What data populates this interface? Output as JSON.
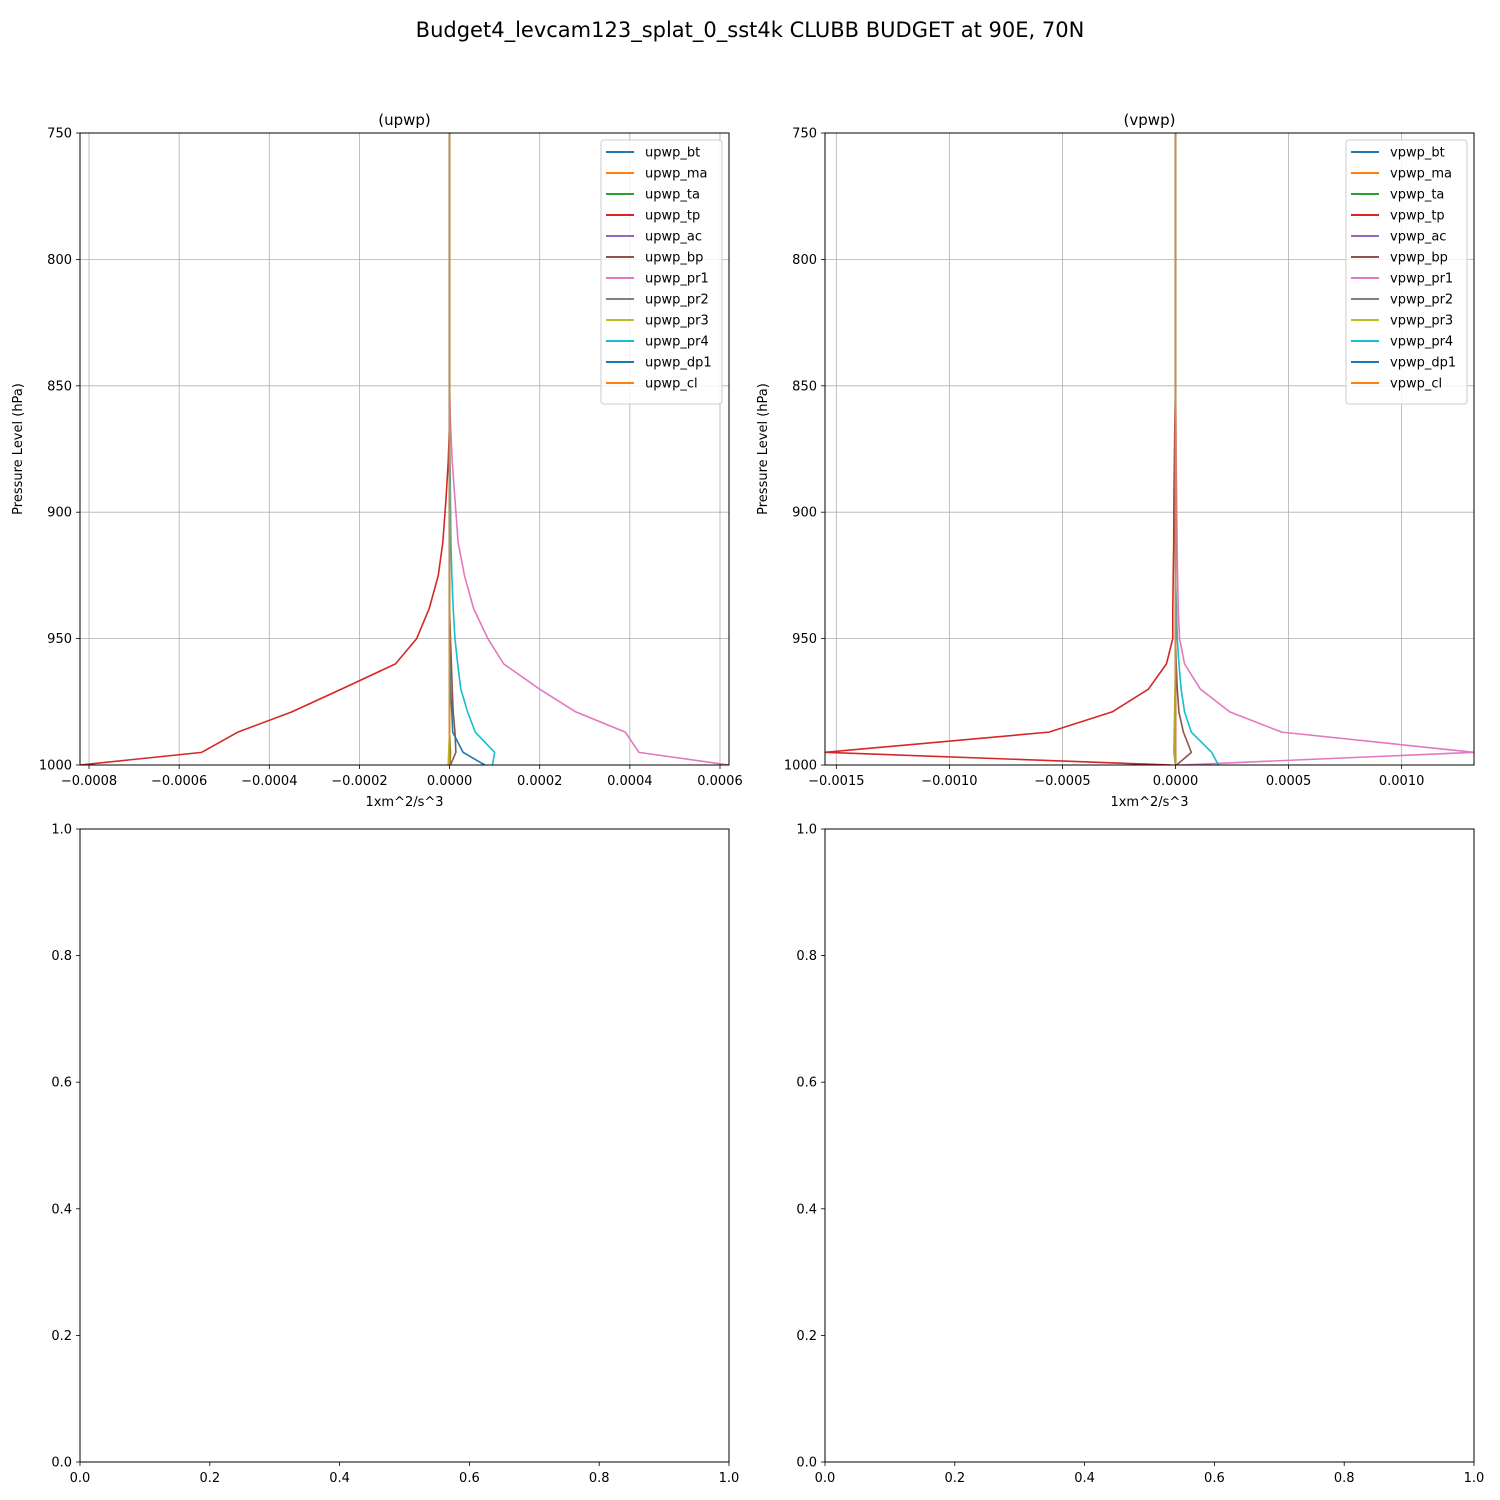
{
  "figure": {
    "suptitle": "Budget4_levcam123_splat_0_sst4k CLUBB BUDGET at 90E, 70N"
  },
  "chart_data": [
    {
      "type": "line",
      "title": "(upwp)",
      "xlabel": "1xm^2/s^3",
      "ylabel": "Pressure Level (hPa)",
      "xlim": [
        -0.00082,
        0.00062
      ],
      "ylim": [
        1000,
        750
      ],
      "y_inverted": true,
      "xticks": [
        -0.0008,
        -0.0006,
        -0.0004,
        -0.0002,
        0.0,
        0.0002,
        0.0004,
        0.0006
      ],
      "xtick_labels": [
        "−0.0008",
        "−0.0006",
        "−0.0004",
        "−0.0002",
        "0.0000",
        "0.0002",
        "0.0004",
        "0.0006"
      ],
      "yticks": [
        750,
        800,
        850,
        900,
        950,
        1000
      ],
      "ytick_labels": [
        "750",
        "800",
        "850",
        "900",
        "950",
        "1000"
      ],
      "grid": true,
      "legend_position": "upper-right",
      "levels": [
        750,
        800,
        850,
        865,
        880,
        895,
        912,
        925,
        938,
        950,
        960,
        970,
        979,
        987,
        995,
        1000
      ],
      "series": [
        {
          "name": "upwp_bt",
          "color": "#1f77b4",
          "values": [
            0,
            0,
            0,
            0,
            0,
            0,
            0,
            0,
            0,
            0,
            0,
            0,
            0,
            0,
            0,
            0
          ]
        },
        {
          "name": "upwp_ma",
          "color": "#ff7f0e",
          "values": [
            0,
            0,
            0,
            0,
            0,
            0,
            0,
            0,
            0,
            0,
            0,
            0,
            0,
            0,
            0,
            0
          ]
        },
        {
          "name": "upwp_ta",
          "color": "#2ca02c",
          "values": [
            0,
            0,
            0,
            0,
            0,
            0,
            0,
            0,
            0,
            0,
            0,
            0,
            0,
            0,
            2e-06,
            1e-06
          ]
        },
        {
          "name": "upwp_tp",
          "color": "#d62728",
          "values": [
            0,
            0,
            0,
            0,
            -3e-06,
            -8e-06,
            -1.5e-05,
            -2.5e-05,
            -4.5e-05,
            -7.3e-05,
            -0.00012,
            -0.00024,
            -0.00035,
            -0.00047,
            -0.00055,
            -0.00082
          ]
        },
        {
          "name": "upwp_ac",
          "color": "#9467bd",
          "values": [
            0,
            0,
            0,
            0,
            0,
            0,
            0,
            0,
            0,
            0,
            0,
            0,
            0,
            0,
            0,
            0
          ]
        },
        {
          "name": "upwp_bp",
          "color": "#8c564b",
          "values": [
            0,
            0,
            0,
            0,
            0,
            0,
            0,
            0,
            0,
            2e-06,
            4e-06,
            6e-06,
            8e-06,
            1.2e-05,
            1.4e-05,
            2e-06
          ]
        },
        {
          "name": "upwp_pr1",
          "color": "#e377c2",
          "values": [
            0,
            0,
            0,
            2e-06,
            6e-06,
            1.2e-05,
            1.9e-05,
            3.3e-05,
            5.3e-05,
            8.5e-05,
            0.00012,
            0.0002,
            0.00028,
            0.00039,
            0.00042,
            0.00062
          ]
        },
        {
          "name": "upwp_pr2",
          "color": "#7f7f7f",
          "values": [
            0,
            0,
            0,
            0,
            0,
            0,
            0,
            0,
            0,
            0,
            0,
            0,
            0,
            0,
            0,
            0
          ]
        },
        {
          "name": "upwp_pr3",
          "color": "#bcbd22",
          "values": [
            0,
            0,
            0,
            0,
            0,
            0,
            0,
            0,
            0,
            0,
            0,
            0,
            0,
            0,
            -2e-06,
            -3e-06
          ]
        },
        {
          "name": "upwp_pr4",
          "color": "#17becf",
          "values": [
            0,
            0,
            0,
            0,
            1e-06,
            2e-06,
            3e-06,
            5e-06,
            8e-06,
            1.2e-05,
            1.8e-05,
            2.5e-05,
            4e-05,
            5.7e-05,
            0.0001,
            9.5e-05
          ]
        },
        {
          "name": "upwp_dp1",
          "color": "#1f77b4",
          "values": [
            0,
            0,
            0,
            0,
            0,
            0,
            0,
            0,
            0,
            0,
            1e-06,
            2e-06,
            5e-06,
            7e-06,
            3e-05,
            7.8e-05
          ]
        },
        {
          "name": "upwp_cl",
          "color": "#ff7f0e",
          "values": [
            0,
            0,
            0,
            0,
            0,
            0,
            0,
            0,
            0,
            0,
            0,
            0,
            0,
            0,
            0,
            0
          ]
        }
      ]
    },
    {
      "type": "line",
      "title": "(vpwp)",
      "xlabel": "1xm^2/s^3",
      "ylabel": "Pressure Level (hPa)",
      "xlim": [
        -0.00155,
        0.00132
      ],
      "ylim": [
        1000,
        750
      ],
      "y_inverted": true,
      "xticks": [
        -0.0015,
        -0.001,
        -0.0005,
        0.0,
        0.0005,
        0.001
      ],
      "xtick_labels": [
        "−0.0015",
        "−0.0010",
        "−0.0005",
        "0.0000",
        "0.0005",
        "0.0010"
      ],
      "yticks": [
        750,
        800,
        850,
        900,
        950,
        1000
      ],
      "ytick_labels": [
        "750",
        "800",
        "850",
        "900",
        "950",
        "1000"
      ],
      "grid": true,
      "legend_position": "upper-right",
      "levels": [
        750,
        800,
        850,
        865,
        880,
        895,
        912,
        925,
        938,
        950,
        960,
        970,
        979,
        987,
        995,
        1000
      ],
      "series": [
        {
          "name": "vpwp_bt",
          "color": "#1f77b4",
          "values": [
            0,
            0,
            0,
            0,
            0,
            0,
            0,
            0,
            0,
            0,
            0,
            0,
            0,
            0,
            0,
            0
          ]
        },
        {
          "name": "vpwp_ma",
          "color": "#ff7f0e",
          "values": [
            0,
            0,
            0,
            0,
            0,
            0,
            0,
            0,
            0,
            0,
            0,
            0,
            0,
            0,
            0,
            0
          ]
        },
        {
          "name": "vpwp_ta",
          "color": "#2ca02c",
          "values": [
            0,
            0,
            0,
            0,
            0,
            0,
            0,
            0,
            0,
            0,
            0,
            0,
            0,
            0,
            0,
            0
          ]
        },
        {
          "name": "vpwp_tp",
          "color": "#d62728",
          "values": [
            0,
            0,
            0,
            -3e-06,
            -5e-06,
            -7e-06,
            -8e-06,
            -1e-05,
            -1.2e-05,
            -1.2e-05,
            -4e-05,
            -0.00012,
            -0.00028,
            -0.00056,
            -0.00155,
            -2e-05
          ]
        },
        {
          "name": "vpwp_ac",
          "color": "#9467bd",
          "values": [
            0,
            0,
            0,
            0,
            0,
            0,
            0,
            0,
            0,
            0,
            0,
            0,
            0,
            0,
            0,
            0
          ]
        },
        {
          "name": "vpwp_bp",
          "color": "#8c564b",
          "values": [
            0,
            0,
            0,
            0,
            0,
            0,
            0,
            0,
            0,
            0,
            3e-06,
            8e-06,
            1.5e-05,
            3.5e-05,
            7e-05,
            5e-06
          ]
        },
        {
          "name": "vpwp_pr1",
          "color": "#e377c2",
          "values": [
            0,
            0,
            0,
            2e-06,
            3e-06,
            5e-06,
            7e-06,
            9e-06,
            1.2e-05,
            1.8e-05,
            4e-05,
            0.00011,
            0.00024,
            0.00047,
            0.00132,
            2e-05
          ]
        },
        {
          "name": "vpwp_pr2",
          "color": "#7f7f7f",
          "values": [
            0,
            0,
            0,
            0,
            0,
            0,
            0,
            0,
            0,
            0,
            0,
            0,
            0,
            0,
            0,
            0
          ]
        },
        {
          "name": "vpwp_pr3",
          "color": "#bcbd22",
          "values": [
            0,
            0,
            0,
            0,
            0,
            0,
            0,
            0,
            0,
            0,
            0,
            -2e-06,
            -4e-06,
            -6e-06,
            -8e-06,
            0
          ]
        },
        {
          "name": "vpwp_pr4",
          "color": "#17becf",
          "values": [
            0,
            0,
            0,
            0,
            0,
            0,
            0,
            0,
            4e-06,
            8e-06,
            1.5e-05,
            2.5e-05,
            4e-05,
            7e-05,
            0.00016,
            0.00019
          ]
        },
        {
          "name": "vpwp_dp1",
          "color": "#1f77b4",
          "values": [
            0,
            0,
            0,
            0,
            0,
            0,
            0,
            0,
            0,
            0,
            0,
            0,
            0,
            0,
            0,
            0
          ]
        },
        {
          "name": "vpwp_cl",
          "color": "#ff7f0e",
          "values": [
            0,
            0,
            0,
            0,
            0,
            0,
            0,
            0,
            0,
            0,
            0,
            0,
            0,
            0,
            0,
            0
          ]
        }
      ]
    },
    {
      "type": "line",
      "title": "",
      "xlim": [
        0,
        1
      ],
      "ylim": [
        0,
        1
      ],
      "xticks": [
        0.0,
        0.2,
        0.4,
        0.6,
        0.8,
        1.0
      ],
      "xtick_labels": [
        "0.0",
        "0.2",
        "0.4",
        "0.6",
        "0.8",
        "1.0"
      ],
      "yticks": [
        0.0,
        0.2,
        0.4,
        0.6,
        0.8,
        1.0
      ],
      "ytick_labels": [
        "0.0",
        "0.2",
        "0.4",
        "0.6",
        "0.8",
        "1.0"
      ],
      "grid": false,
      "series": []
    },
    {
      "type": "line",
      "title": "",
      "xlim": [
        0,
        1
      ],
      "ylim": [
        0,
        1
      ],
      "xticks": [
        0.0,
        0.2,
        0.4,
        0.6,
        0.8,
        1.0
      ],
      "xtick_labels": [
        "0.0",
        "0.2",
        "0.4",
        "0.6",
        "0.8",
        "1.0"
      ],
      "yticks": [
        0.0,
        0.2,
        0.4,
        0.6,
        0.8,
        1.0
      ],
      "ytick_labels": [
        "0.0",
        "0.2",
        "0.4",
        "0.6",
        "0.8",
        "1.0"
      ],
      "grid": false,
      "series": []
    }
  ]
}
